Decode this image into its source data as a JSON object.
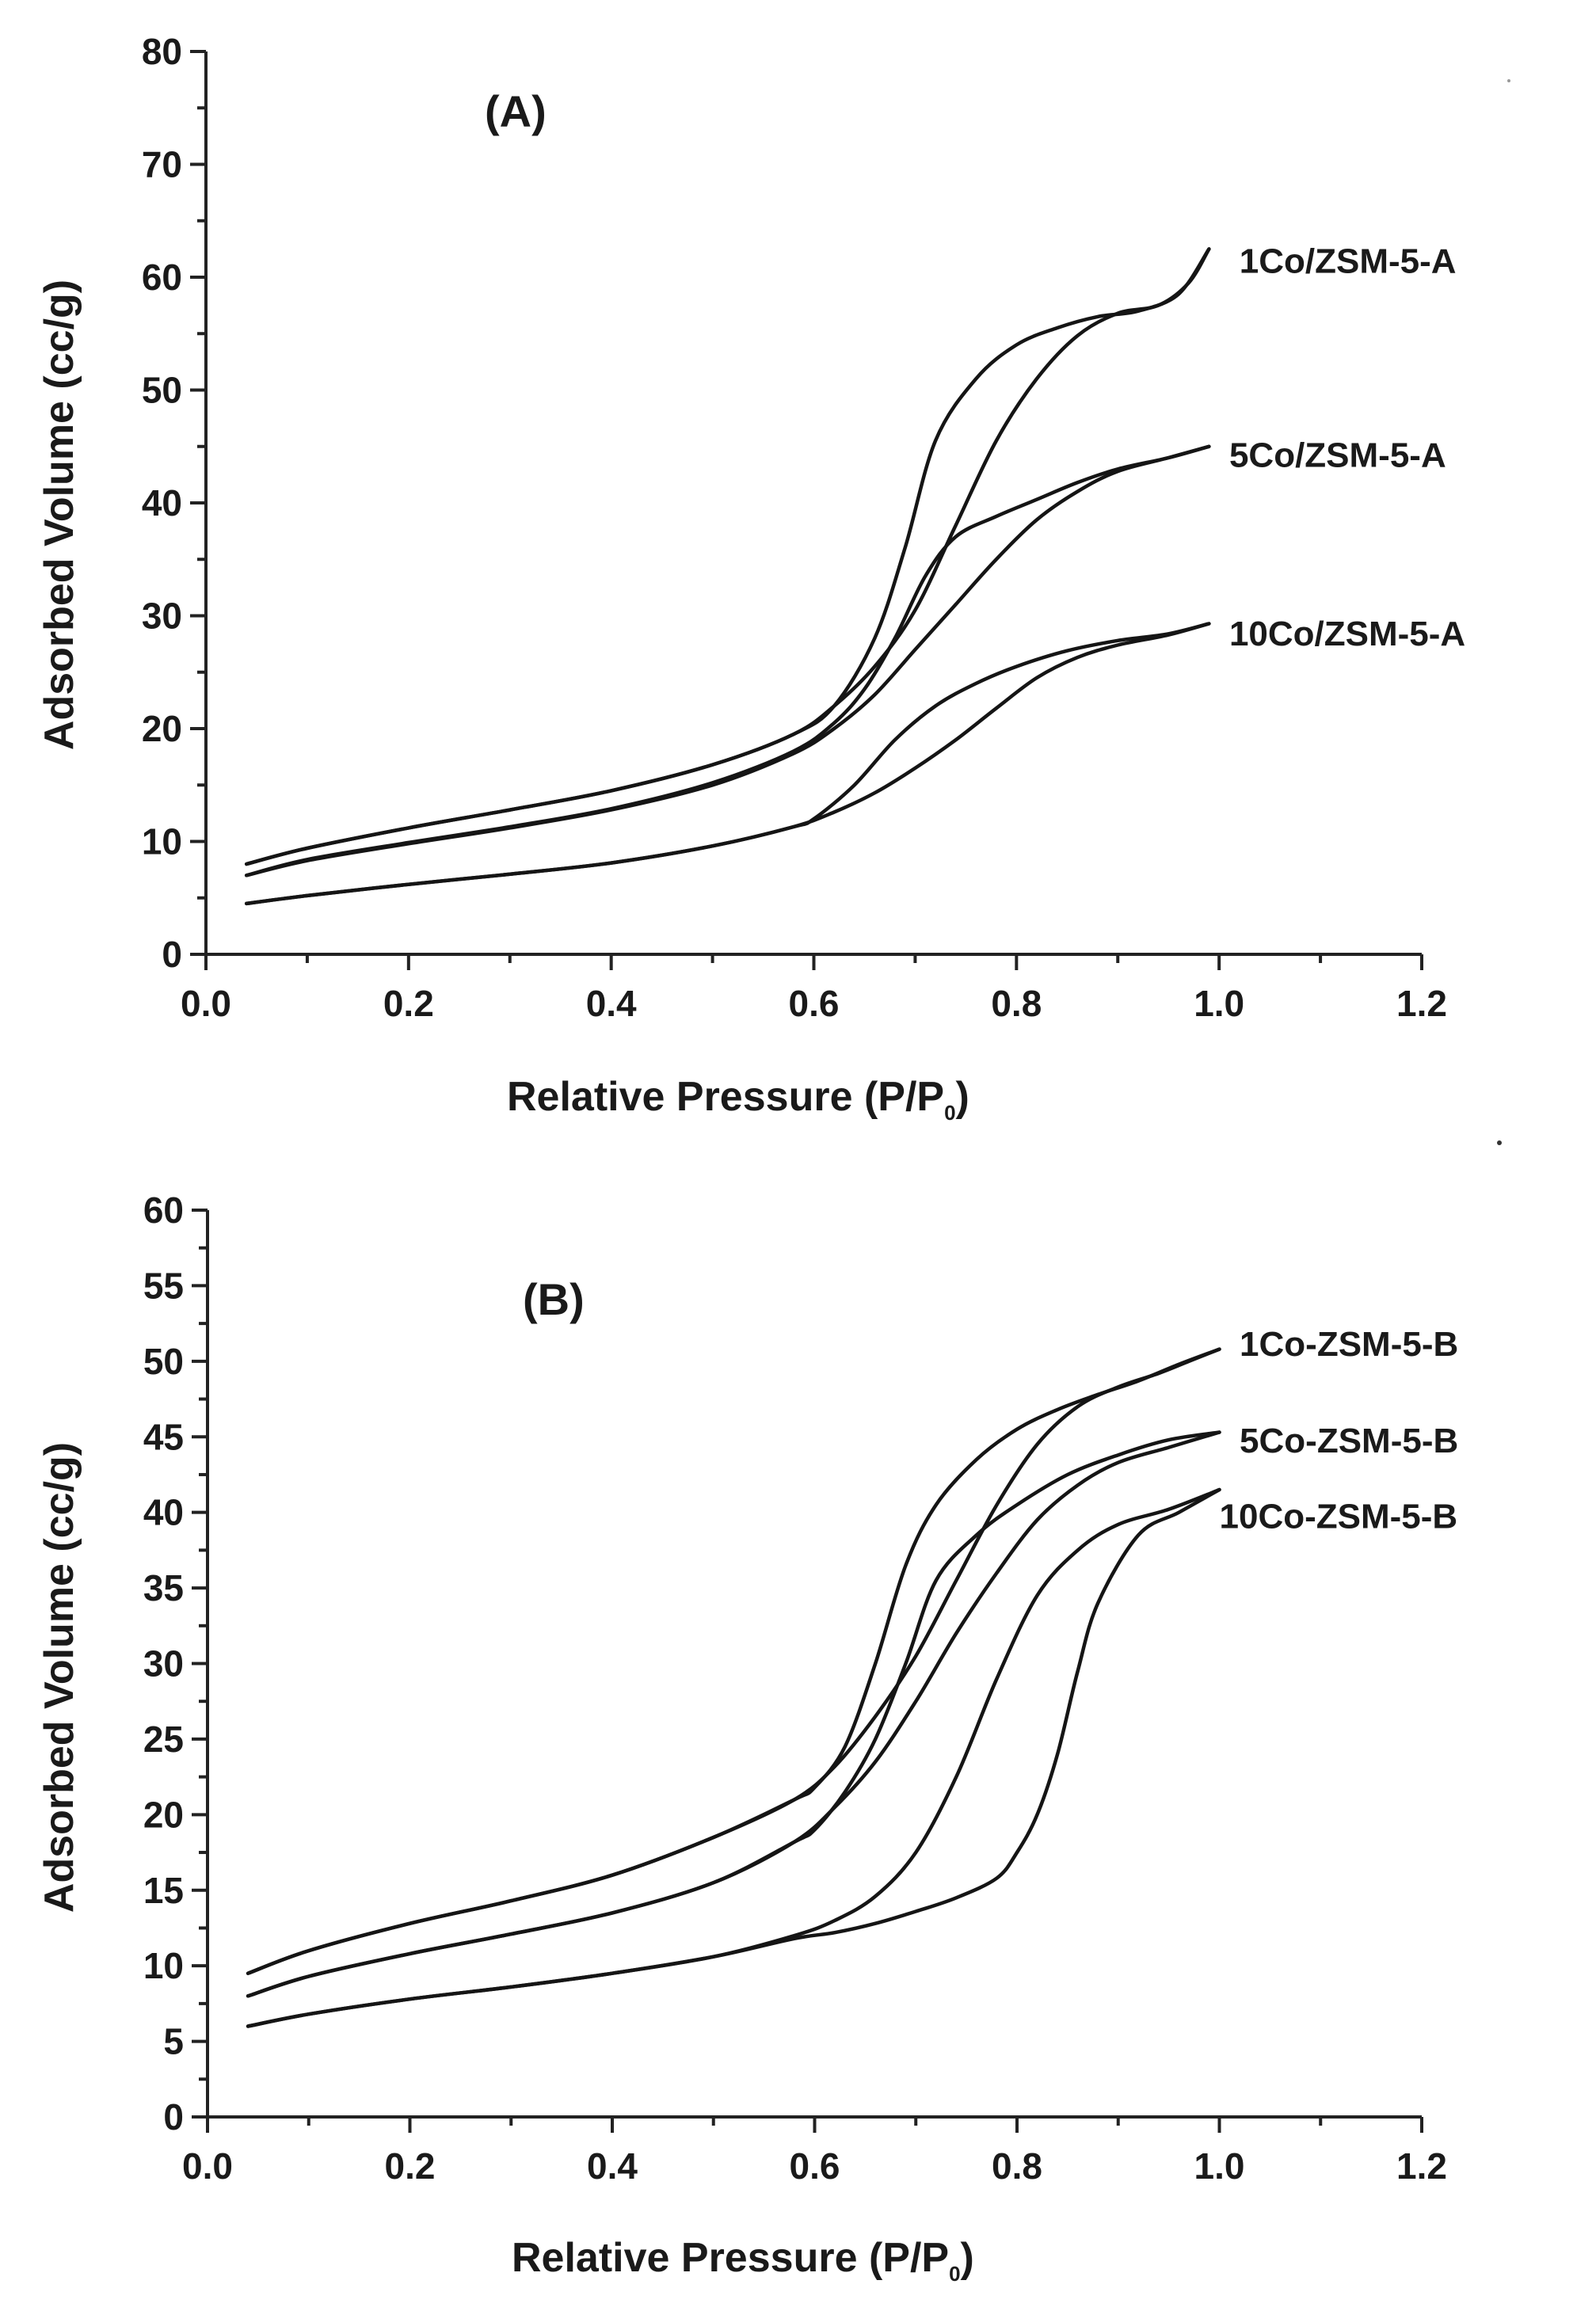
{
  "chart_data": [
    {
      "type": "line",
      "panel_label": "(A)",
      "xlabel": "Relative Pressure (P/P",
      "xlabel_sub": "0",
      "xlabel_end": ")",
      "ylabel": "Adsorbed Volume (cc/g)",
      "xlim": [
        0.0,
        1.2
      ],
      "ylim": [
        0,
        80
      ],
      "xticks": [
        "0.0",
        "0.2",
        "0.4",
        "0.6",
        "0.8",
        "1.0",
        "1.2"
      ],
      "yticks": [
        "0",
        "10",
        "20",
        "30",
        "40",
        "50",
        "60",
        "70",
        "80"
      ],
      "series": [
        {
          "name": "1Co/ZSM-5-A",
          "adsorption": {
            "x": [
              0.04,
              0.1,
              0.2,
              0.3,
              0.4,
              0.5,
              0.58,
              0.62,
              0.66,
              0.7,
              0.74,
              0.78,
              0.82,
              0.86,
              0.9,
              0.94,
              0.97,
              0.99
            ],
            "y": [
              8.0,
              9.4,
              11.2,
              12.8,
              14.5,
              16.8,
              19.5,
              22.0,
              25.5,
              30.5,
              38.0,
              45.5,
              51.0,
              54.8,
              56.8,
              57.5,
              59.5,
              62.5
            ]
          },
          "desorption": {
            "x": [
              0.99,
              0.96,
              0.92,
              0.88,
              0.84,
              0.8,
              0.76,
              0.72,
              0.69,
              0.66,
              0.62,
              0.58,
              0.5,
              0.4,
              0.3,
              0.2,
              0.1,
              0.04
            ],
            "y": [
              62.5,
              58.5,
              57.0,
              56.5,
              55.5,
              54.0,
              51.0,
              45.5,
              36.0,
              28.0,
              22.0,
              19.5,
              16.8,
              14.5,
              12.8,
              11.2,
              9.4,
              8.0
            ]
          },
          "label_value": {
            "x": 1.02,
            "y": 61.5
          }
        },
        {
          "name": "5Co/ZSM-5-A",
          "adsorption": {
            "x": [
              0.04,
              0.1,
              0.2,
              0.3,
              0.4,
              0.5,
              0.58,
              0.62,
              0.66,
              0.7,
              0.74,
              0.78,
              0.82,
              0.86,
              0.9,
              0.95,
              0.99
            ],
            "y": [
              7.0,
              8.3,
              9.8,
              11.2,
              12.8,
              15.0,
              17.8,
              20.0,
              23.0,
              27.0,
              31.0,
              35.0,
              38.5,
              41.0,
              42.8,
              44.0,
              45.0
            ]
          },
          "desorption": {
            "x": [
              0.99,
              0.95,
              0.9,
              0.86,
              0.82,
              0.78,
              0.74,
              0.71,
              0.68,
              0.65,
              0.62,
              0.58,
              0.5,
              0.4,
              0.3,
              0.2,
              0.1,
              0.04
            ],
            "y": [
              45.0,
              44.0,
              43.0,
              41.8,
              40.3,
              38.8,
              37.0,
              33.5,
              28.0,
              23.5,
              20.5,
              18.0,
              15.2,
              12.9,
              11.3,
              9.9,
              8.4,
              7.0
            ]
          },
          "label_value": {
            "x": 1.01,
            "y": 44.3
          }
        },
        {
          "name": "10Co/ZSM-5-A",
          "adsorption": {
            "x": [
              0.04,
              0.1,
              0.2,
              0.3,
              0.4,
              0.5,
              0.58,
              0.62,
              0.66,
              0.7,
              0.74,
              0.78,
              0.82,
              0.86,
              0.9,
              0.95,
              0.99
            ],
            "y": [
              4.5,
              5.2,
              6.2,
              7.1,
              8.1,
              9.6,
              11.3,
              12.6,
              14.3,
              16.5,
              19.0,
              21.8,
              24.5,
              26.3,
              27.4,
              28.3,
              29.3
            ]
          },
          "desorption": {
            "x": [
              0.99,
              0.95,
              0.9,
              0.85,
              0.8,
              0.76,
              0.72,
              0.68,
              0.64,
              0.6,
              0.58,
              0.5,
              0.4,
              0.3,
              0.2,
              0.1,
              0.04
            ],
            "y": [
              29.3,
              28.4,
              27.8,
              26.9,
              25.5,
              24.0,
              22.0,
              19.0,
              15.0,
              12.0,
              11.3,
              9.6,
              8.1,
              7.1,
              6.2,
              5.2,
              4.5
            ]
          },
          "label_value": {
            "x": 1.01,
            "y": 28.5
          }
        }
      ]
    },
    {
      "type": "line",
      "panel_label": "(B)",
      "xlabel": "Relative Pressure (P/P",
      "xlabel_sub": "0",
      "xlabel_end": ")",
      "ylabel": "Adsorbed Volume (cc/g)",
      "xlim": [
        0.0,
        1.2
      ],
      "ylim": [
        0,
        60
      ],
      "xticks": [
        "0.0",
        "0.2",
        "0.4",
        "0.6",
        "0.8",
        "1.0",
        "1.2"
      ],
      "yticks": [
        "0",
        "5",
        "10",
        "15",
        "20",
        "25",
        "30",
        "35",
        "40",
        "45",
        "50",
        "55",
        "60"
      ],
      "series": [
        {
          "name": "1Co-ZSM-5-B",
          "adsorption": {
            "x": [
              0.04,
              0.1,
              0.2,
              0.3,
              0.4,
              0.5,
              0.58,
              0.62,
              0.66,
              0.7,
              0.74,
              0.78,
              0.82,
              0.86,
              0.9,
              0.94,
              0.97,
              1.0
            ],
            "y": [
              9.5,
              11.0,
              12.8,
              14.3,
              16.0,
              18.5,
              21.0,
              23.2,
              26.5,
              30.5,
              35.5,
              40.5,
              44.5,
              47.0,
              48.3,
              49.2,
              50.0,
              50.8
            ]
          },
          "desorption": {
            "x": [
              1.0,
              0.96,
              0.92,
              0.88,
              0.84,
              0.8,
              0.76,
              0.72,
              0.69,
              0.66,
              0.63,
              0.6,
              0.58,
              0.5,
              0.4,
              0.3,
              0.2,
              0.1,
              0.04
            ],
            "y": [
              50.8,
              49.8,
              48.7,
              47.8,
              46.8,
              45.5,
              43.5,
              40.5,
              36.5,
              30.0,
              24.5,
              21.8,
              21.0,
              18.5,
              16.0,
              14.3,
              12.8,
              11.0,
              9.5
            ]
          },
          "label_value": {
            "x": 1.02,
            "y": 51.2
          }
        },
        {
          "name": "5Co-ZSM-5-B",
          "adsorption": {
            "x": [
              0.04,
              0.1,
              0.2,
              0.3,
              0.4,
              0.5,
              0.58,
              0.62,
              0.66,
              0.7,
              0.74,
              0.78,
              0.82,
              0.86,
              0.9,
              0.95,
              1.0
            ],
            "y": [
              8.0,
              9.3,
              10.8,
              12.1,
              13.5,
              15.5,
              18.2,
              20.5,
              23.5,
              27.5,
              32.0,
              36.0,
              39.5,
              41.8,
              43.3,
              44.3,
              45.3
            ]
          },
          "desorption": {
            "x": [
              1.0,
              0.95,
              0.9,
              0.85,
              0.8,
              0.76,
              0.72,
              0.69,
              0.66,
              0.63,
              0.6,
              0.58,
              0.5,
              0.4,
              0.3,
              0.2,
              0.1,
              0.04
            ],
            "y": [
              45.3,
              44.8,
              43.8,
              42.5,
              40.5,
              38.5,
              35.5,
              30.0,
              25.0,
              21.5,
              19.0,
              18.2,
              15.5,
              13.5,
              12.1,
              10.8,
              9.3,
              8.0
            ]
          },
          "label_value": {
            "x": 1.02,
            "y": 44.8
          }
        },
        {
          "name": "10Co-ZSM-5-B",
          "adsorption": {
            "x": [
              0.04,
              0.1,
              0.2,
              0.3,
              0.4,
              0.5,
              0.58,
              0.62,
              0.66,
              0.7,
              0.74,
              0.78,
              0.82,
              0.86,
              0.9,
              0.95,
              1.0
            ],
            "y": [
              6.0,
              6.8,
              7.8,
              8.6,
              9.5,
              10.6,
              12.0,
              13.0,
              14.6,
              17.5,
              22.5,
              29.0,
              34.5,
              37.5,
              39.2,
              40.2,
              41.5
            ]
          },
          "desorption": {
            "x": [
              1.0,
              0.96,
              0.92,
              0.88,
              0.86,
              0.84,
              0.82,
              0.8,
              0.78,
              0.74,
              0.7,
              0.66,
              0.62,
              0.58,
              0.5,
              0.4,
              0.3,
              0.2,
              0.1,
              0.04
            ],
            "y": [
              41.5,
              40.0,
              38.5,
              34.0,
              29.5,
              24.0,
              20.0,
              17.5,
              15.8,
              14.5,
              13.6,
              12.8,
              12.2,
              11.8,
              10.6,
              9.5,
              8.6,
              7.8,
              6.8,
              6.0
            ]
          },
          "label_value": {
            "x": 1.0,
            "y": 39.8
          }
        }
      ]
    }
  ]
}
